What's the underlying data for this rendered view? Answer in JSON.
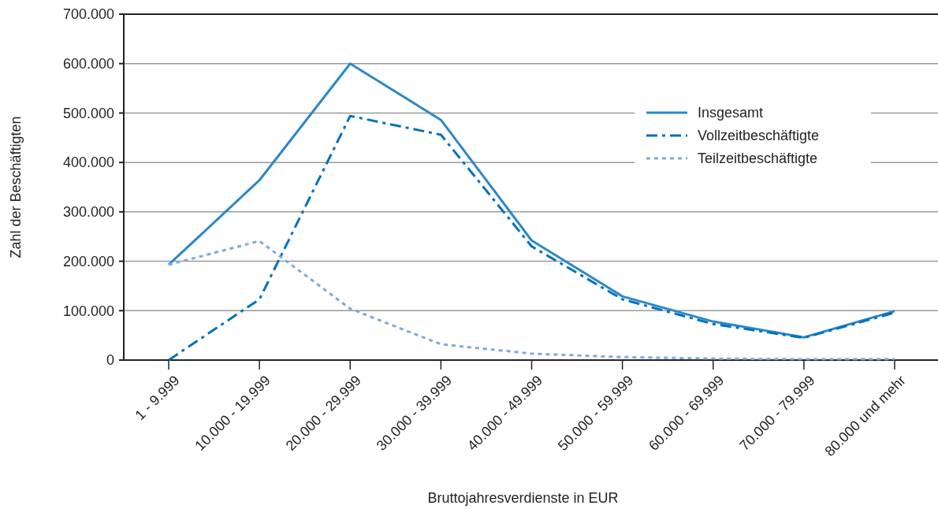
{
  "chart_data": {
    "type": "line",
    "xlabel": "Bruttojahresverdienste in EUR",
    "ylabel": "Zahl der Beschäftigten",
    "categories": [
      "1 - 9.999",
      "10.000 - 19.999",
      "20.000 - 29.999",
      "30.000 - 39.999",
      "40.000 - 49.999",
      "50.000 - 59.999",
      "60.000 - 69.999",
      "70.000 - 79.999",
      "80.000 und mehr"
    ],
    "series": [
      {
        "name": "Insgesamt",
        "color": "#2b88c8",
        "line_style": "solid",
        "values": [
          193000,
          364000,
          600000,
          486000,
          242000,
          129000,
          78000,
          46000,
          99000
        ]
      },
      {
        "name": "Vollzeitbeschäftigte",
        "color": "#0072bb",
        "line_style": "dashed",
        "values": [
          0,
          123000,
          494000,
          456000,
          230000,
          123000,
          73000,
          45000,
          96000
        ]
      },
      {
        "name": "Teilzeitbeschäftigte",
        "color": "#7fa9dc",
        "line_style": "dotted",
        "values": [
          193000,
          241000,
          104000,
          32000,
          13000,
          6000,
          3000,
          2000,
          2000
        ]
      }
    ],
    "ylim": [
      0,
      700000
    ],
    "yticks": [
      {
        "value": 0,
        "label": "0"
      },
      {
        "value": 100000,
        "label": "100.000"
      },
      {
        "value": 200000,
        "label": "200.000"
      },
      {
        "value": 300000,
        "label": "300.000"
      },
      {
        "value": 400000,
        "label": "400.000"
      },
      {
        "value": 500000,
        "label": "500.000"
      },
      {
        "value": 600000,
        "label": "600.000"
      },
      {
        "value": 700000,
        "label": "700.000"
      }
    ],
    "grid": "y",
    "legend": "top right",
    "marker": "none"
  }
}
